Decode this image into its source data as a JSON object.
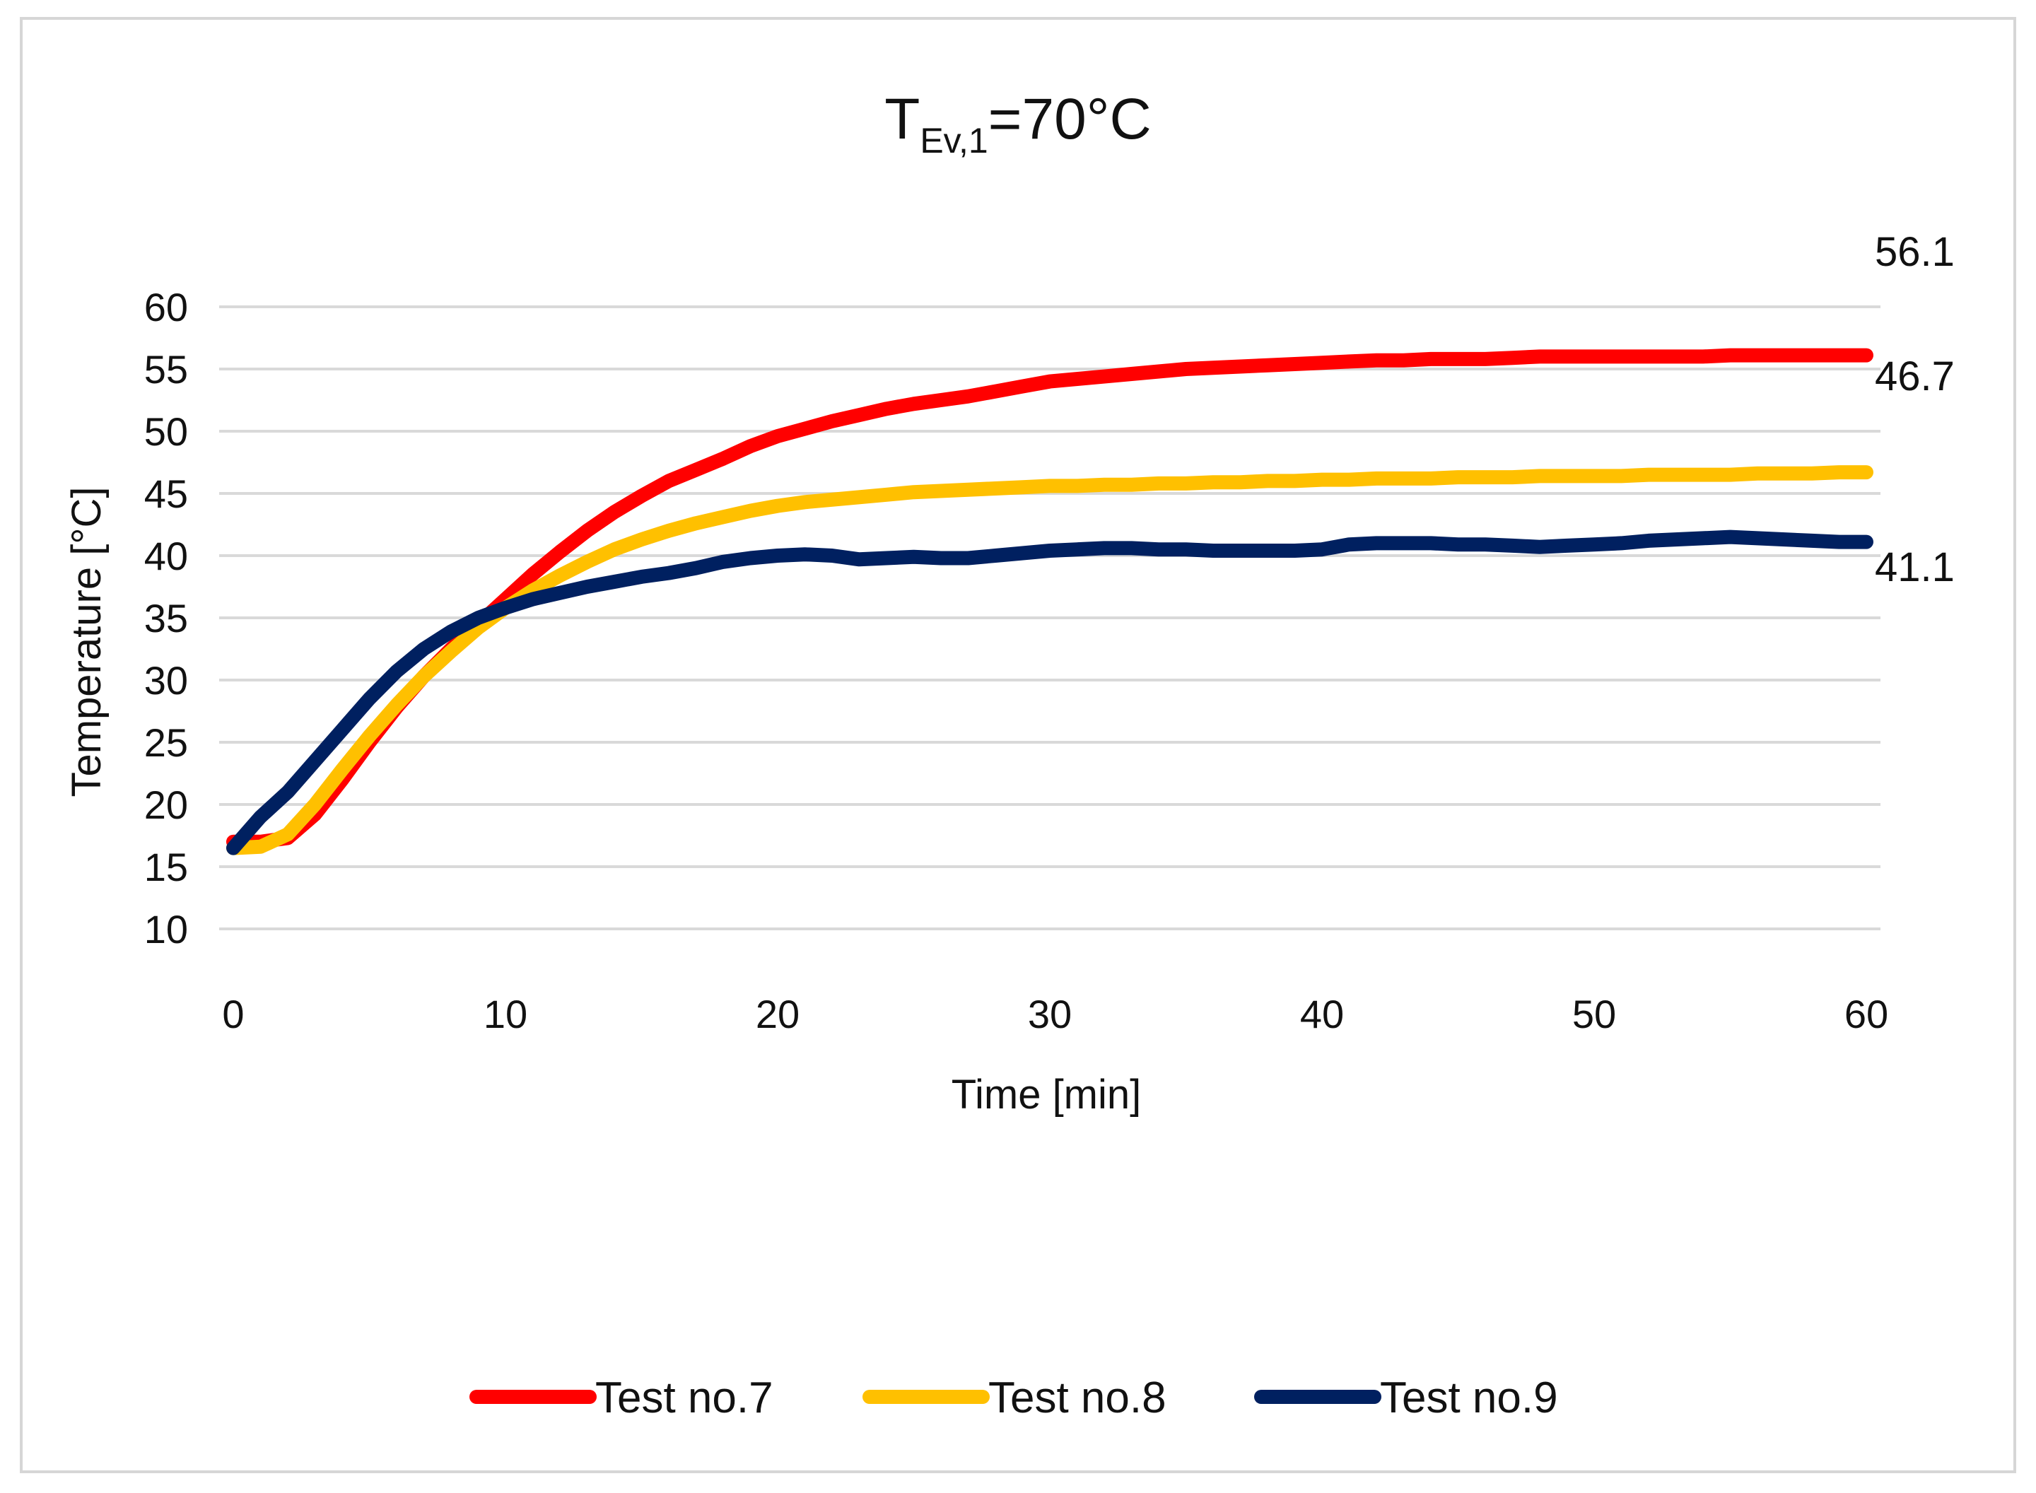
{
  "chart_data": {
    "type": "line",
    "title": {
      "main": "T",
      "subscript": "Ev,1",
      "rest": "=70°C"
    },
    "xlabel": "Time [min]",
    "ylabel": "Temperature [°C]",
    "xlim": [
      0,
      60
    ],
    "ylim": [
      10,
      60
    ],
    "x_ticks": [
      0,
      10,
      20,
      30,
      40,
      50,
      60
    ],
    "y_ticks": [
      10,
      15,
      20,
      25,
      30,
      35,
      40,
      45,
      50,
      55,
      60
    ],
    "grid": true,
    "legend_position": "bottom",
    "series": [
      {
        "name": "Test no.7",
        "color": "#ff0000",
        "end_label": "56.1",
        "x": [
          0,
          1,
          2,
          3,
          4,
          5,
          6,
          7,
          8,
          9,
          10,
          11,
          12,
          13,
          14,
          15,
          16,
          17,
          18,
          19,
          20,
          21,
          22,
          23,
          24,
          25,
          26,
          27,
          28,
          29,
          30,
          31,
          32,
          33,
          34,
          35,
          36,
          37,
          38,
          39,
          40,
          41,
          42,
          43,
          44,
          45,
          46,
          47,
          48,
          49,
          50,
          51,
          52,
          53,
          54,
          55,
          56,
          57,
          58,
          59,
          60
        ],
        "values": [
          17.0,
          17.0,
          17.3,
          19.2,
          22.0,
          25.0,
          27.8,
          30.3,
          32.5,
          34.5,
          36.5,
          38.5,
          40.3,
          42.0,
          43.5,
          44.8,
          46.0,
          46.9,
          47.8,
          48.8,
          49.6,
          50.2,
          50.8,
          51.3,
          51.8,
          52.2,
          52.5,
          52.8,
          53.2,
          53.6,
          54.0,
          54.2,
          54.4,
          54.6,
          54.8,
          55.0,
          55.1,
          55.2,
          55.3,
          55.4,
          55.5,
          55.6,
          55.7,
          55.7,
          55.8,
          55.8,
          55.8,
          55.9,
          56.0,
          56.0,
          56.0,
          56.0,
          56.0,
          56.0,
          56.0,
          56.1,
          56.1,
          56.1,
          56.1,
          56.1,
          56.1
        ]
      },
      {
        "name": "Test no.8",
        "color": "#ffc000",
        "end_label": "46.7",
        "x": [
          0,
          1,
          2,
          3,
          4,
          5,
          6,
          7,
          8,
          9,
          10,
          11,
          12,
          13,
          14,
          15,
          16,
          17,
          18,
          19,
          20,
          21,
          22,
          23,
          24,
          25,
          26,
          27,
          28,
          29,
          30,
          31,
          32,
          33,
          34,
          35,
          36,
          37,
          38,
          39,
          40,
          41,
          42,
          43,
          44,
          45,
          46,
          47,
          48,
          49,
          50,
          51,
          52,
          53,
          54,
          55,
          56,
          57,
          58,
          59,
          60
        ],
        "values": [
          16.5,
          16.6,
          17.6,
          20.0,
          22.8,
          25.5,
          28.0,
          30.3,
          32.3,
          34.2,
          35.8,
          37.2,
          38.4,
          39.5,
          40.5,
          41.3,
          42.0,
          42.6,
          43.1,
          43.6,
          44.0,
          44.3,
          44.5,
          44.7,
          44.9,
          45.1,
          45.2,
          45.3,
          45.4,
          45.5,
          45.6,
          45.6,
          45.7,
          45.7,
          45.8,
          45.8,
          45.9,
          45.9,
          46.0,
          46.0,
          46.1,
          46.1,
          46.2,
          46.2,
          46.2,
          46.3,
          46.3,
          46.3,
          46.4,
          46.4,
          46.4,
          46.4,
          46.5,
          46.5,
          46.5,
          46.5,
          46.6,
          46.6,
          46.6,
          46.7,
          46.7
        ]
      },
      {
        "name": "Test no.9",
        "color": "#002060",
        "end_label": "41.1",
        "x": [
          0,
          1,
          2,
          3,
          4,
          5,
          6,
          7,
          8,
          9,
          10,
          11,
          12,
          13,
          14,
          15,
          16,
          17,
          18,
          19,
          20,
          21,
          22,
          23,
          24,
          25,
          26,
          27,
          28,
          29,
          30,
          31,
          32,
          33,
          34,
          35,
          36,
          37,
          38,
          39,
          40,
          41,
          42,
          43,
          44,
          45,
          46,
          47,
          48,
          49,
          50,
          51,
          52,
          53,
          54,
          55,
          56,
          57,
          58,
          59,
          60
        ],
        "values": [
          16.5,
          19.0,
          21.0,
          23.5,
          26.0,
          28.5,
          30.7,
          32.5,
          33.9,
          35.0,
          35.8,
          36.5,
          37.0,
          37.5,
          37.9,
          38.3,
          38.6,
          39.0,
          39.5,
          39.8,
          40.0,
          40.1,
          40.0,
          39.7,
          39.8,
          39.9,
          39.8,
          39.8,
          40.0,
          40.2,
          40.4,
          40.5,
          40.6,
          40.6,
          40.5,
          40.5,
          40.4,
          40.4,
          40.4,
          40.4,
          40.5,
          40.9,
          41.0,
          41.0,
          41.0,
          40.9,
          40.9,
          40.8,
          40.7,
          40.8,
          40.9,
          41.0,
          41.2,
          41.3,
          41.4,
          41.5,
          41.4,
          41.3,
          41.2,
          41.1,
          41.1
        ]
      }
    ]
  }
}
